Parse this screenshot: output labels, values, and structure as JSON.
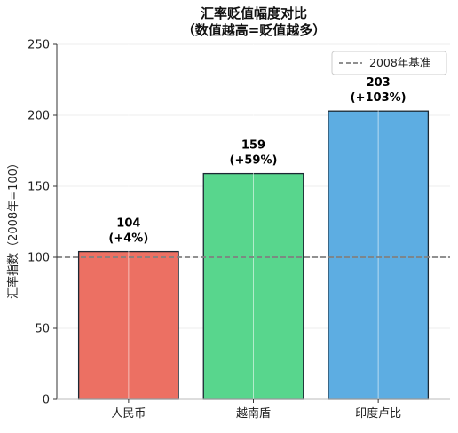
{
  "chart_data": {
    "type": "bar",
    "title_line1": "汇率贬值幅度对比",
    "title_line2": "（数值越高=贬值越多）",
    "xlabel": "",
    "ylabel": "汇率指数（2008年=100）",
    "categories": [
      "人民币",
      "越南盾",
      "印度卢比"
    ],
    "values": [
      104,
      159,
      203
    ],
    "change_labels": [
      "(+4%)",
      "(+59%)",
      "(+103%)"
    ],
    "bar_colors": [
      "#ec7063",
      "#58d68d",
      "#5dade2"
    ],
    "bar_edge_color": "#1c2833",
    "ylim": [
      0,
      250
    ],
    "yticks": [
      0,
      50,
      100,
      150,
      200,
      250
    ],
    "grid": true,
    "baseline": {
      "value": 100,
      "label": "2008年基准",
      "color": "#808080"
    },
    "legend_position": "top-right"
  }
}
